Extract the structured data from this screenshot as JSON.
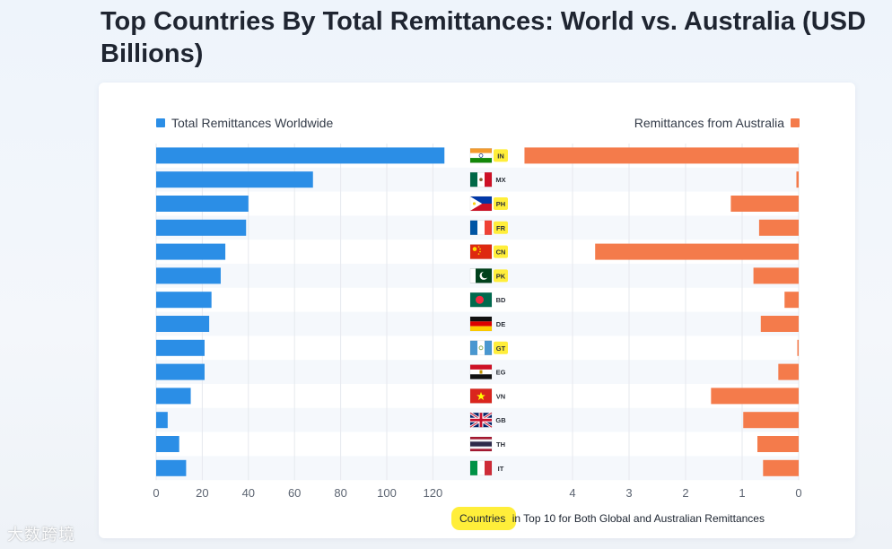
{
  "page": {
    "title": "Top Countries By Total Remittances: World vs. Australia (USD Billions)",
    "watermark": "大数跨境"
  },
  "chart_data": {
    "type": "bar",
    "orientation": "horizontal-butterfly",
    "title": "Top Countries By Total Remittances: World vs. Australia (USD Billions)",
    "categories": [
      "IN",
      "MX",
      "PH",
      "FR",
      "CN",
      "PK",
      "BD",
      "DE",
      "GT",
      "EG",
      "VN",
      "GB",
      "TH",
      "IT"
    ],
    "highlighted_categories": [
      "IN",
      "PH",
      "FR",
      "CN",
      "PK",
      "GT"
    ],
    "series": [
      {
        "name": "Total Remittances Worldwide",
        "color": "#2b8ee6",
        "values": [
          125,
          68,
          40,
          39,
          30,
          28,
          24,
          23,
          21,
          21,
          15,
          5,
          10,
          13
        ],
        "xlim": [
          0,
          130
        ],
        "ticks": [
          0,
          20,
          40,
          60,
          80,
          100,
          120
        ]
      },
      {
        "name": "Remittances from Australia",
        "color": "#f47b4b",
        "values": [
          4.85,
          0.04,
          1.2,
          0.7,
          3.6,
          0.8,
          0.25,
          0.67,
          0.02,
          0.36,
          1.55,
          0.98,
          0.73,
          0.63
        ],
        "xlim": [
          0,
          4.85
        ],
        "ticks": [
          4,
          3,
          2,
          1,
          0
        ],
        "reversed": true
      }
    ],
    "legend_position": "top",
    "grid": true,
    "footnote": {
      "highlight_word": "Countries",
      "text": " in Top 10 for Both Global and Australian Remittances"
    }
  }
}
